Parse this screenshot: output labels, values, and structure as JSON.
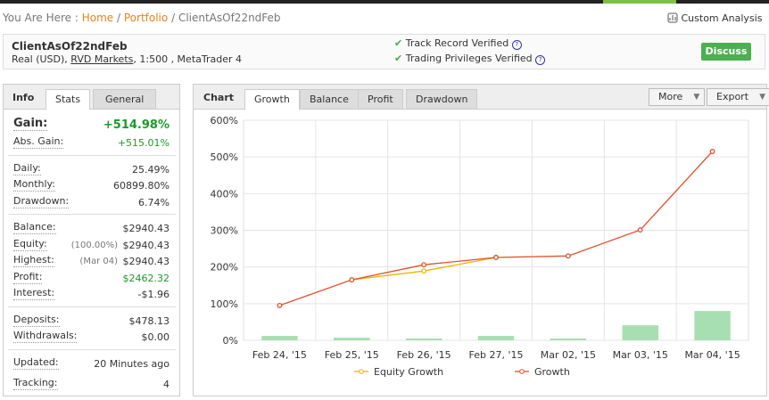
{
  "breadcrumb": {
    "prefix": "You Are Here :",
    "items": [
      "Home",
      "Portfolio",
      "ClientAsOf22ndFeb"
    ],
    "separator": "/"
  },
  "custom_analysis": "Custom Analysis",
  "header": {
    "title": "ClientAsOf22ndFeb",
    "account": "Real (USD),",
    "broker": "RVD Markets",
    "details": ", 1:500 , MetaTrader 4",
    "verified": [
      "Track Record Verified",
      "Trading Privileges Verified"
    ],
    "help": "?",
    "button": "Discuss"
  },
  "info": {
    "tabs": [
      "Info",
      "Stats",
      "General"
    ],
    "sections": [
      [
        {
          "label": "Gain:",
          "value": "+514.98%"
        },
        {
          "label": "Abs. Gain:",
          "value": "+515.01%"
        }
      ],
      [
        {
          "label": "Daily:",
          "value": "25.49%"
        },
        {
          "label": "Monthly:",
          "value": "60899.80%"
        },
        {
          "label": "Drawdown:",
          "value": "6.74%"
        }
      ],
      [
        {
          "label": "Balance:",
          "value": "$2940.43"
        },
        {
          "label": "Equity:",
          "note": "(100.00%)",
          "value": "$2940.43"
        },
        {
          "label": "Highest:",
          "note": "(Mar 04)",
          "value": "$2940.43"
        },
        {
          "label": "Profit:",
          "value": "$2462.32"
        },
        {
          "label": "Interest:",
          "value": "-$1.96"
        }
      ],
      [
        {
          "label": "Deposits:",
          "value": "$478.13"
        },
        {
          "label": "Withdrawals:",
          "value": "$0.00"
        }
      ],
      [
        {
          "label": "Updated:",
          "value": "20 Minutes ago"
        },
        {
          "label": "Tracking:",
          "value": "4"
        }
      ]
    ]
  },
  "chart_panel": {
    "title": "Chart",
    "tabs": [
      "Growth",
      "Balance",
      "Profit",
      "Drawdown"
    ],
    "buttons": [
      "More",
      "Export"
    ]
  },
  "chart_data": {
    "type": "line",
    "categories": [
      "Feb 24, '15",
      "Feb 25, '15",
      "Feb 26, '15",
      "Feb 27, '15",
      "Mar 02, '15",
      "Mar 03, '15",
      "Mar 04, '15"
    ],
    "series": [
      {
        "name": "Equity Growth",
        "color": "#f0b400",
        "values": [
          null,
          165,
          189,
          226,
          null,
          null,
          null
        ]
      },
      {
        "name": "Growth",
        "color": "#e0502d",
        "values": [
          95,
          165,
          206,
          226,
          230,
          301,
          514.98
        ]
      },
      {
        "type": "bar",
        "color": "#a8dfb2",
        "values": [
          12,
          7,
          5,
          12,
          5,
          41,
          80
        ]
      }
    ],
    "ylim": [
      0,
      600
    ],
    "yticks": [
      {
        "value": 0,
        "label": "0%"
      },
      {
        "value": 100,
        "label": "100%"
      },
      {
        "value": 200,
        "label": "200%"
      },
      {
        "value": 300,
        "label": "300%"
      },
      {
        "value": 400,
        "label": "400%"
      },
      {
        "value": 500,
        "label": "500%"
      },
      {
        "value": 600,
        "label": "600%"
      }
    ],
    "grid": true
  }
}
